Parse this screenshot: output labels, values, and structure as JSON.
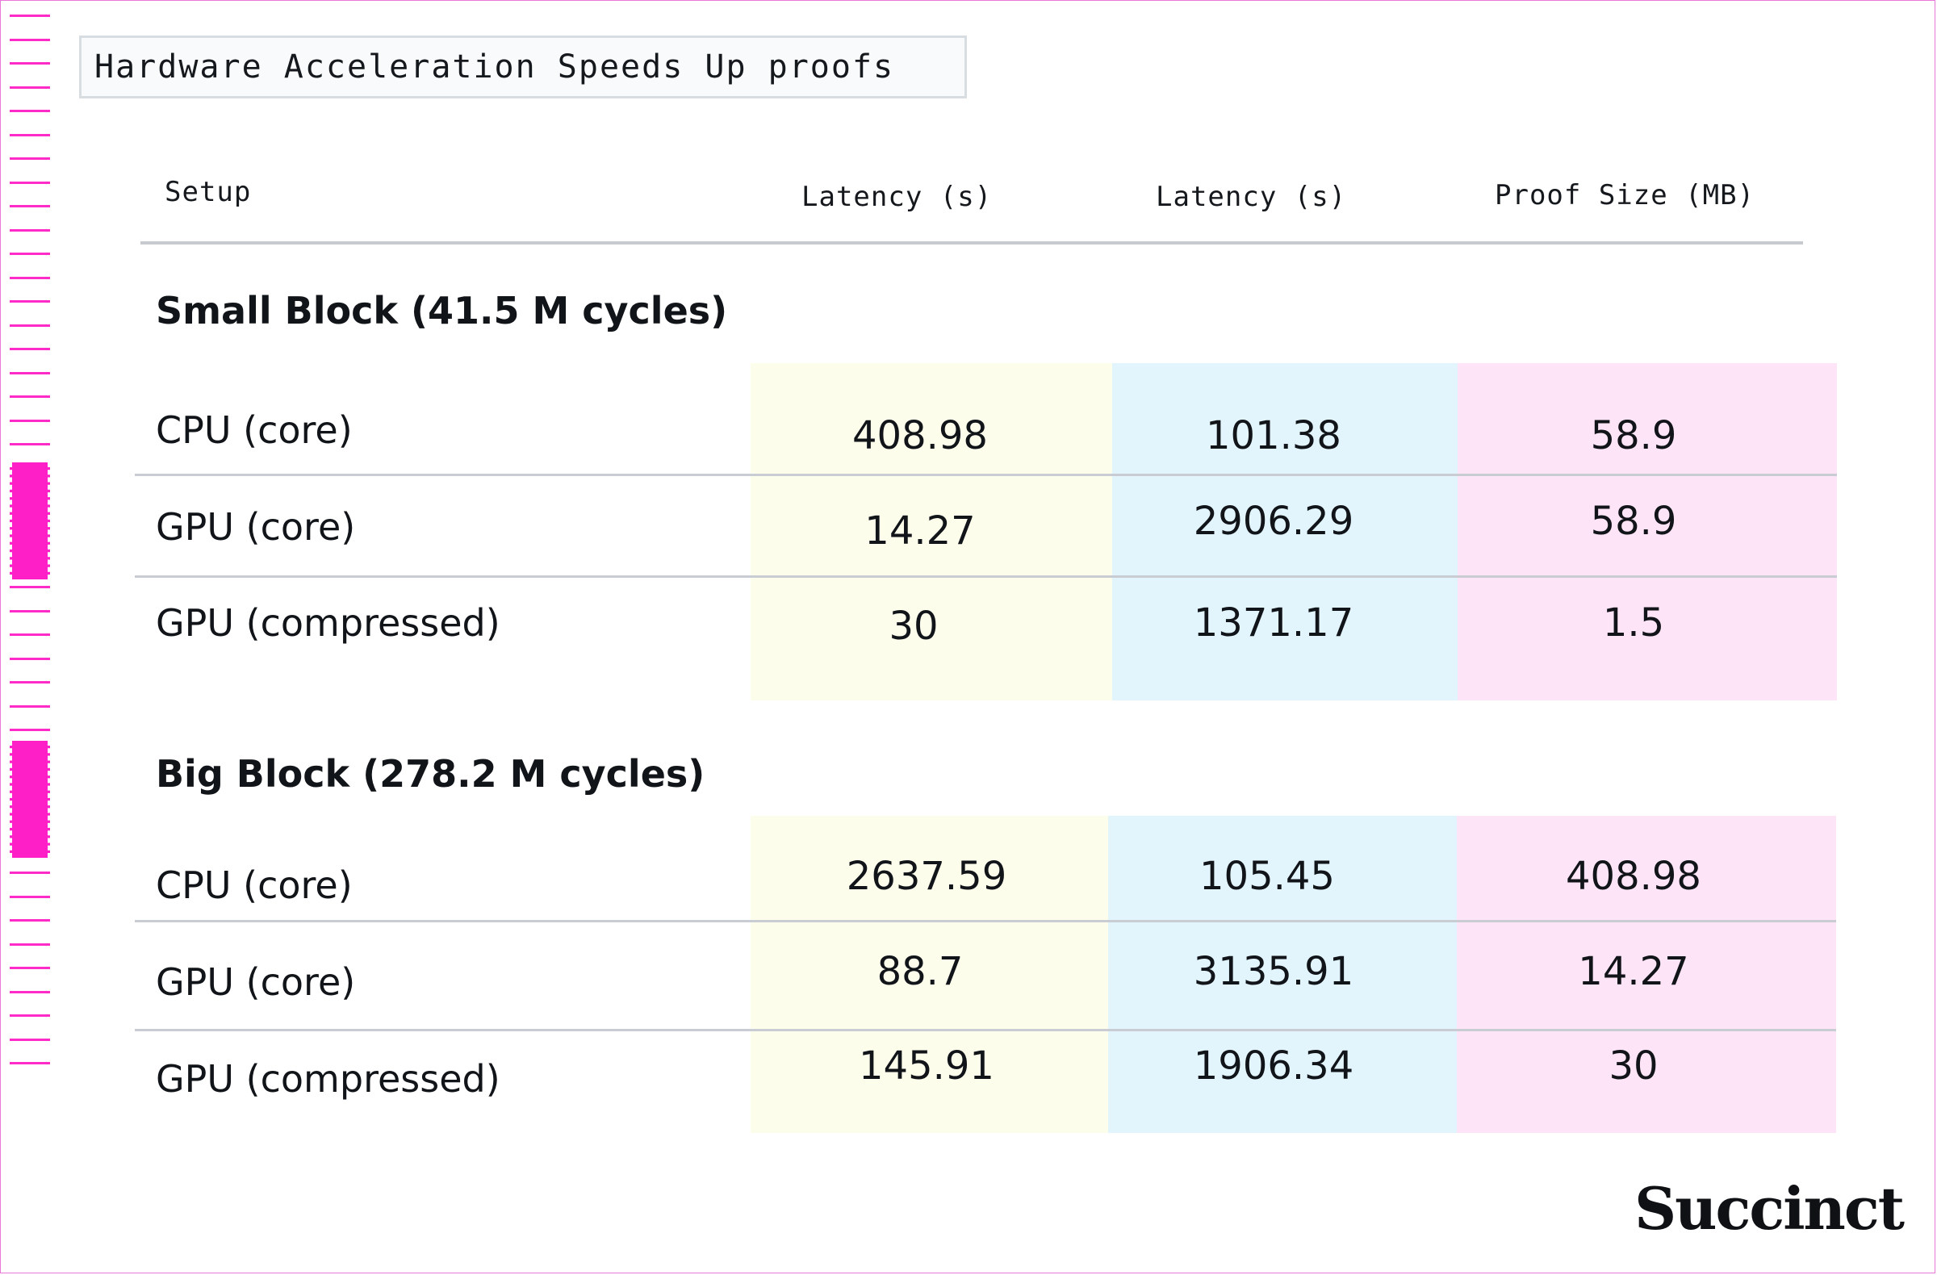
{
  "title": "Hardware Acceleration Speeds Up proofs",
  "brand": "Succinct",
  "colors": {
    "accent_magenta": "#ff1fc7",
    "band_yellow": "#fdfdec",
    "band_blue": "#e2f4fc",
    "band_pink": "#fde4f7"
  },
  "columns": [
    "Setup",
    "Latency (s)",
    "Latency (s)",
    "Proof Size (MB)"
  ],
  "chart_data": {
    "type": "table",
    "title": "Hardware Acceleration Speeds Up proofs",
    "columns": [
      "Setup",
      "Latency (s)",
      "Latency (s)",
      "Proof Size (MB)"
    ],
    "sections": [
      {
        "title": "Small Block (41.5 M cycles)",
        "rows": [
          {
            "setup": "CPU (core)",
            "values": [
              "408.98",
              "101.38",
              "58.9"
            ]
          },
          {
            "setup": "GPU (core)",
            "values": [
              "14.27",
              "2906.29",
              "58.9"
            ]
          },
          {
            "setup": "GPU (compressed)",
            "values": [
              "30",
              "1371.17",
              "1.5"
            ]
          }
        ]
      },
      {
        "title": "Big Block (278.2 M cycles)",
        "rows": [
          {
            "setup": "CPU (core)",
            "values": [
              "2637.59",
              "105.45",
              "408.98"
            ]
          },
          {
            "setup": "GPU (core)",
            "values": [
              "88.7",
              "3135.91",
              "14.27"
            ]
          },
          {
            "setup": "GPU (compressed)",
            "values": [
              "145.91",
              "1906.34",
              "30"
            ]
          }
        ]
      }
    ]
  }
}
